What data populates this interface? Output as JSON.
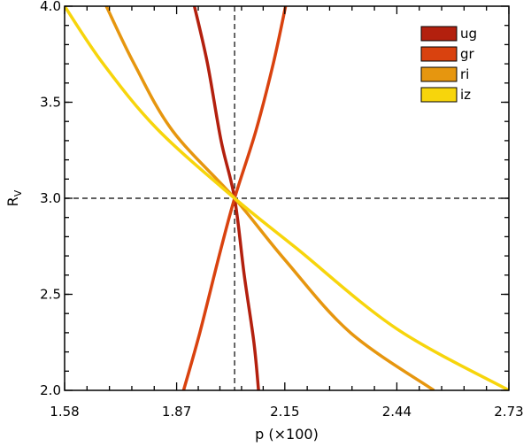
{
  "chart_data": {
    "type": "line",
    "title": "",
    "xlabel": "p (×100)",
    "ylabel": "R",
    "ylabel_sub": "V",
    "xlim": [
      1.58,
      2.73
    ],
    "ylim": [
      2.0,
      4.0
    ],
    "x_ticks": [
      "1.58",
      "1.87",
      "2.15",
      "2.44",
      "2.73"
    ],
    "y_ticks": [
      "2.0",
      "2.5",
      "3.0",
      "3.5",
      "4.0"
    ],
    "legend_position": "top-right",
    "reference_lines": {
      "x": 2.02,
      "y": 3.0,
      "style": "dashed"
    },
    "series": [
      {
        "name": "ug",
        "color": "#b3200e",
        "points": [
          [
            1.916,
            4.0
          ],
          [
            1.95,
            3.7
          ],
          [
            1.985,
            3.3
          ],
          [
            2.02,
            3.0
          ],
          [
            2.045,
            2.6
          ],
          [
            2.07,
            2.25
          ],
          [
            2.082,
            2.0
          ]
        ]
      },
      {
        "name": "gr",
        "color": "#d9420f",
        "points": [
          [
            2.152,
            4.0
          ],
          [
            2.12,
            3.7
          ],
          [
            2.075,
            3.35
          ],
          [
            2.02,
            3.0
          ],
          [
            1.98,
            2.7
          ],
          [
            1.93,
            2.3
          ],
          [
            1.888,
            2.0
          ]
        ]
      },
      {
        "name": "ri",
        "color": "#e6960f",
        "points": [
          [
            1.688,
            4.0
          ],
          [
            1.76,
            3.7
          ],
          [
            1.86,
            3.35
          ],
          [
            2.02,
            3.0
          ],
          [
            2.15,
            2.68
          ],
          [
            2.32,
            2.3
          ],
          [
            2.536,
            2.0
          ]
        ]
      },
      {
        "name": "iz",
        "color": "#f7d50c",
        "points": [
          [
            1.58,
            4.0
          ],
          [
            1.68,
            3.7
          ],
          [
            1.82,
            3.36
          ],
          [
            2.02,
            3.0
          ],
          [
            2.18,
            2.74
          ],
          [
            2.44,
            2.32
          ],
          [
            2.73,
            2.0
          ]
        ]
      }
    ]
  }
}
